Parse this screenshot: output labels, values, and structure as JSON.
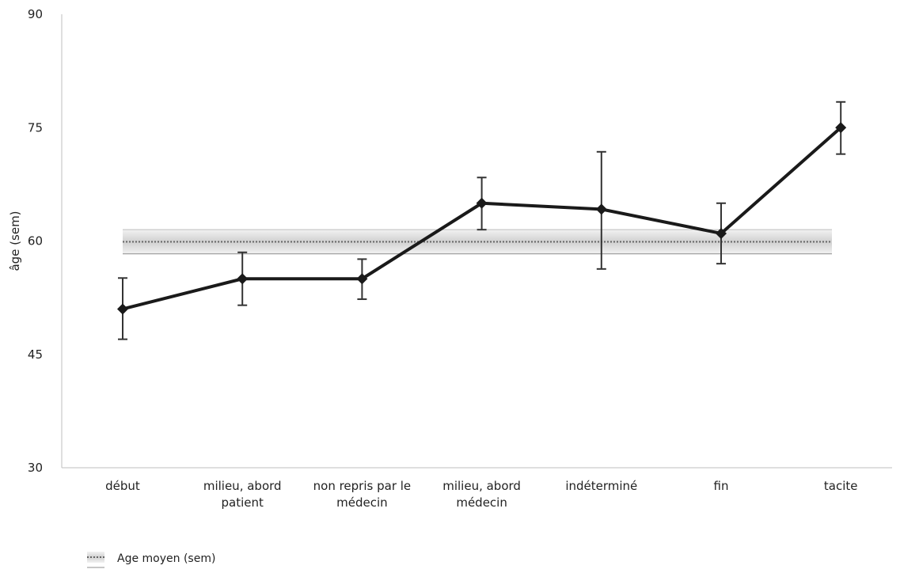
{
  "chart_data": {
    "type": "line",
    "title": "",
    "xlabel": "",
    "ylabel": "âge (sem)",
    "ylim": [
      30,
      90
    ],
    "yticks": [
      30,
      45,
      60,
      75,
      90
    ],
    "grid": false,
    "categories": [
      [
        "début"
      ],
      [
        "milieu, abord",
        "patient"
      ],
      [
        "non repris par le",
        "médecin"
      ],
      [
        "milieu, abord",
        "médecin"
      ],
      [
        "indéterminé"
      ],
      [
        "fin"
      ],
      [
        "tacite"
      ]
    ],
    "series": [
      {
        "values": [
          51,
          55,
          55,
          65,
          64.2,
          61,
          75
        ],
        "error_low": [
          47,
          51.5,
          52.3,
          61.5,
          56.3,
          57,
          71.5
        ],
        "error_high": [
          55.1,
          58.5,
          57.6,
          68.4,
          71.8,
          65,
          78.4
        ],
        "color": "#1a1a1a",
        "marker": "diamond"
      }
    ],
    "reference_band": {
      "name": "Age moyen (sem)",
      "mean": 59.9,
      "low": 58.3,
      "high": 61.5,
      "line_color": "#666666",
      "band_color": "#d9d9d9"
    },
    "legend_position": "bottom-left"
  }
}
